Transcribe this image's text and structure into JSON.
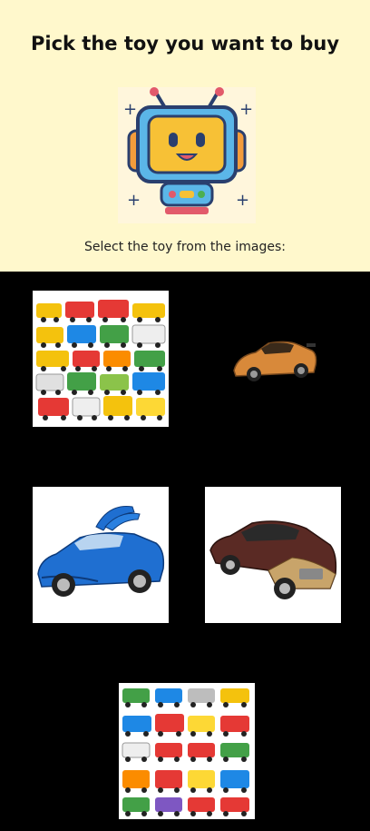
{
  "header": {
    "title": "Pick the toy you want to buy",
    "subtitle": "Select the toy from the images:",
    "mascot_icon": "robot-icon"
  },
  "toys": [
    {
      "name": "toy-option-car-collection",
      "icon": "toy-cars-collection-image"
    },
    {
      "name": "toy-option-orange-car",
      "icon": "orange-car-image"
    },
    {
      "name": "toy-option-blue-car",
      "icon": "blue-suv-image"
    },
    {
      "name": "toy-option-luxury-car",
      "icon": "luxury-sedan-image"
    },
    {
      "name": "toy-option-race-car-collection",
      "icon": "race-cars-collection-image"
    }
  ],
  "colors": {
    "header_bg": "#fff8cc",
    "page_bg": "#000000"
  }
}
